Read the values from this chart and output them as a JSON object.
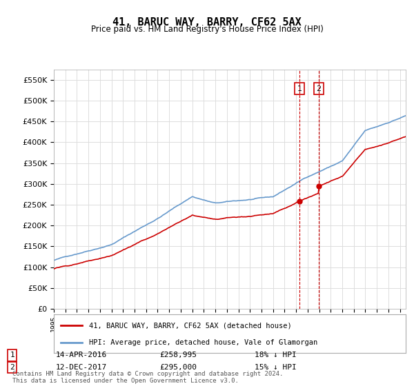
{
  "title": "41, BARUC WAY, BARRY, CF62 5AX",
  "subtitle": "Price paid vs. HM Land Registry's House Price Index (HPI)",
  "ylabel": "",
  "ylim": [
    0,
    575000
  ],
  "yticks": [
    0,
    50000,
    100000,
    150000,
    200000,
    250000,
    300000,
    350000,
    400000,
    450000,
    500000,
    550000
  ],
  "xlim_start": 1995.0,
  "xlim_end": 2025.5,
  "purchase1_x": 2016.29,
  "purchase1_y": 258995,
  "purchase1_label": "1",
  "purchase1_date": "14-APR-2016",
  "purchase1_price": "£258,995",
  "purchase1_hpi": "18% ↓ HPI",
  "purchase2_x": 2017.95,
  "purchase2_y": 295000,
  "purchase2_label": "2",
  "purchase2_date": "12-DEC-2017",
  "purchase2_price": "£295,000",
  "purchase2_hpi": "15% ↓ HPI",
  "red_line_label": "41, BARUC WAY, BARRY, CF62 5AX (detached house)",
  "blue_line_label": "HPI: Average price, detached house, Vale of Glamorgan",
  "footer": "Contains HM Land Registry data © Crown copyright and database right 2024.\nThis data is licensed under the Open Government Licence v3.0.",
  "bg_color": "#ffffff",
  "grid_color": "#dddddd",
  "red_color": "#cc0000",
  "blue_color": "#6699cc"
}
